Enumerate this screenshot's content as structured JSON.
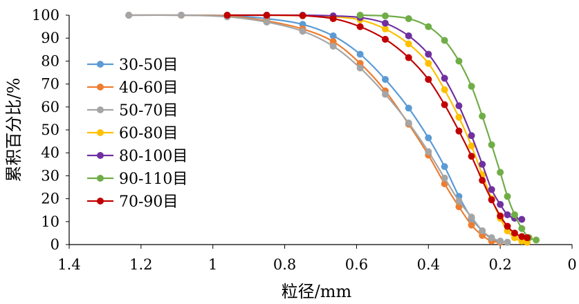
{
  "chart_data": {
    "type": "line",
    "xlabel": "粒径/mm",
    "ylabel": "累积百分比/%",
    "x_reversed": true,
    "xlim": [
      1.4,
      0
    ],
    "ylim": [
      0,
      100
    ],
    "x_ticks": [
      "1.4",
      "1.2",
      "1",
      "0.8",
      "0.6",
      "0.4",
      "0.2",
      "0"
    ],
    "y_ticks": [
      "0",
      "10",
      "20",
      "30",
      "40",
      "50",
      "60",
      "70",
      "80",
      "90",
      "100"
    ],
    "grid": false,
    "legend_position": "left",
    "series": [
      {
        "name": "30-50目",
        "color": "#5B9BD5",
        "points": [
          [
            1.234,
            100
          ],
          [
            1.088,
            100
          ],
          [
            0.96,
            99.8
          ],
          [
            0.85,
            98.5
          ],
          [
            0.75,
            96
          ],
          [
            0.665,
            91
          ],
          [
            0.59,
            83
          ],
          [
            0.52,
            72
          ],
          [
            0.455,
            59.5
          ],
          [
            0.4,
            46.5
          ],
          [
            0.355,
            34
          ],
          [
            0.315,
            21
          ],
          [
            0.28,
            11.5
          ],
          [
            0.25,
            6
          ],
          [
            0.224,
            2.5
          ],
          [
            0.2,
            1.5
          ],
          [
            0.18,
            1
          ]
        ]
      },
      {
        "name": "40-60目",
        "color": "#ED7D31",
        "points": [
          [
            1.234,
            100
          ],
          [
            1.088,
            100
          ],
          [
            0.96,
            99.6
          ],
          [
            0.85,
            97.5
          ],
          [
            0.75,
            94
          ],
          [
            0.665,
            88.5
          ],
          [
            0.59,
            79
          ],
          [
            0.52,
            67
          ],
          [
            0.455,
            52.5
          ],
          [
            0.4,
            39
          ],
          [
            0.355,
            26.5
          ],
          [
            0.315,
            16.5
          ],
          [
            0.28,
            8.5
          ],
          [
            0.25,
            4
          ],
          [
            0.224,
            1.5
          ],
          [
            0.2,
            1
          ]
        ]
      },
      {
        "name": "50-70目",
        "color": "#A5A5A5",
        "points": [
          [
            1.234,
            100
          ],
          [
            1.088,
            100
          ],
          [
            0.96,
            99.3
          ],
          [
            0.85,
            97
          ],
          [
            0.75,
            93
          ],
          [
            0.665,
            86.5
          ],
          [
            0.59,
            77
          ],
          [
            0.52,
            65.5
          ],
          [
            0.455,
            53
          ],
          [
            0.4,
            40.5
          ],
          [
            0.355,
            29
          ],
          [
            0.315,
            19
          ],
          [
            0.28,
            12
          ],
          [
            0.25,
            6
          ],
          [
            0.224,
            3
          ],
          [
            0.2,
            1.5
          ],
          [
            0.18,
            1
          ]
        ]
      },
      {
        "name": "60-80目",
        "color": "#FFC000",
        "points": [
          [
            0.96,
            100
          ],
          [
            0.85,
            100
          ],
          [
            0.75,
            99.8
          ],
          [
            0.665,
            99.3
          ],
          [
            0.59,
            98
          ],
          [
            0.52,
            94
          ],
          [
            0.455,
            87.5
          ],
          [
            0.4,
            79
          ],
          [
            0.355,
            67.5
          ],
          [
            0.315,
            55.5
          ],
          [
            0.28,
            43
          ],
          [
            0.25,
            30.5
          ],
          [
            0.224,
            20
          ],
          [
            0.2,
            11.5
          ],
          [
            0.18,
            6
          ],
          [
            0.16,
            3
          ],
          [
            0.14,
            1.5
          ],
          [
            0.125,
            1
          ]
        ]
      },
      {
        "name": "80-100目",
        "color": "#7030A0",
        "points": [
          [
            0.96,
            100
          ],
          [
            0.85,
            100
          ],
          [
            0.75,
            100
          ],
          [
            0.665,
            99.7
          ],
          [
            0.59,
            99
          ],
          [
            0.52,
            96.5
          ],
          [
            0.455,
            91
          ],
          [
            0.4,
            83
          ],
          [
            0.355,
            72.5
          ],
          [
            0.315,
            60.5
          ],
          [
            0.28,
            47.5
          ],
          [
            0.25,
            35
          ],
          [
            0.224,
            24
          ],
          [
            0.2,
            17.5
          ],
          [
            0.18,
            13
          ],
          [
            0.16,
            11.5
          ],
          [
            0.14,
            11
          ]
        ]
      },
      {
        "name": "90-110目",
        "color": "#70AD47",
        "points": [
          [
            0.59,
            100
          ],
          [
            0.52,
            99.7
          ],
          [
            0.455,
            98.5
          ],
          [
            0.4,
            95
          ],
          [
            0.355,
            89
          ],
          [
            0.315,
            80
          ],
          [
            0.28,
            69
          ],
          [
            0.25,
            56
          ],
          [
            0.224,
            43.5
          ],
          [
            0.2,
            31.5
          ],
          [
            0.18,
            21
          ],
          [
            0.16,
            13
          ],
          [
            0.14,
            7
          ],
          [
            0.12,
            3
          ],
          [
            0.1,
            2
          ]
        ]
      },
      {
        "name": "70-90目",
        "color": "#C00000",
        "points": [
          [
            0.96,
            100
          ],
          [
            0.85,
            100
          ],
          [
            0.75,
            99.8
          ],
          [
            0.665,
            98.5
          ],
          [
            0.59,
            95
          ],
          [
            0.52,
            89.5
          ],
          [
            0.455,
            81.5
          ],
          [
            0.4,
            72
          ],
          [
            0.355,
            61
          ],
          [
            0.315,
            49.5
          ],
          [
            0.28,
            38.5
          ],
          [
            0.25,
            28
          ],
          [
            0.224,
            19.5
          ],
          [
            0.2,
            12.5
          ],
          [
            0.18,
            8
          ],
          [
            0.16,
            5
          ],
          [
            0.14,
            3.5
          ],
          [
            0.125,
            3
          ]
        ]
      }
    ]
  }
}
